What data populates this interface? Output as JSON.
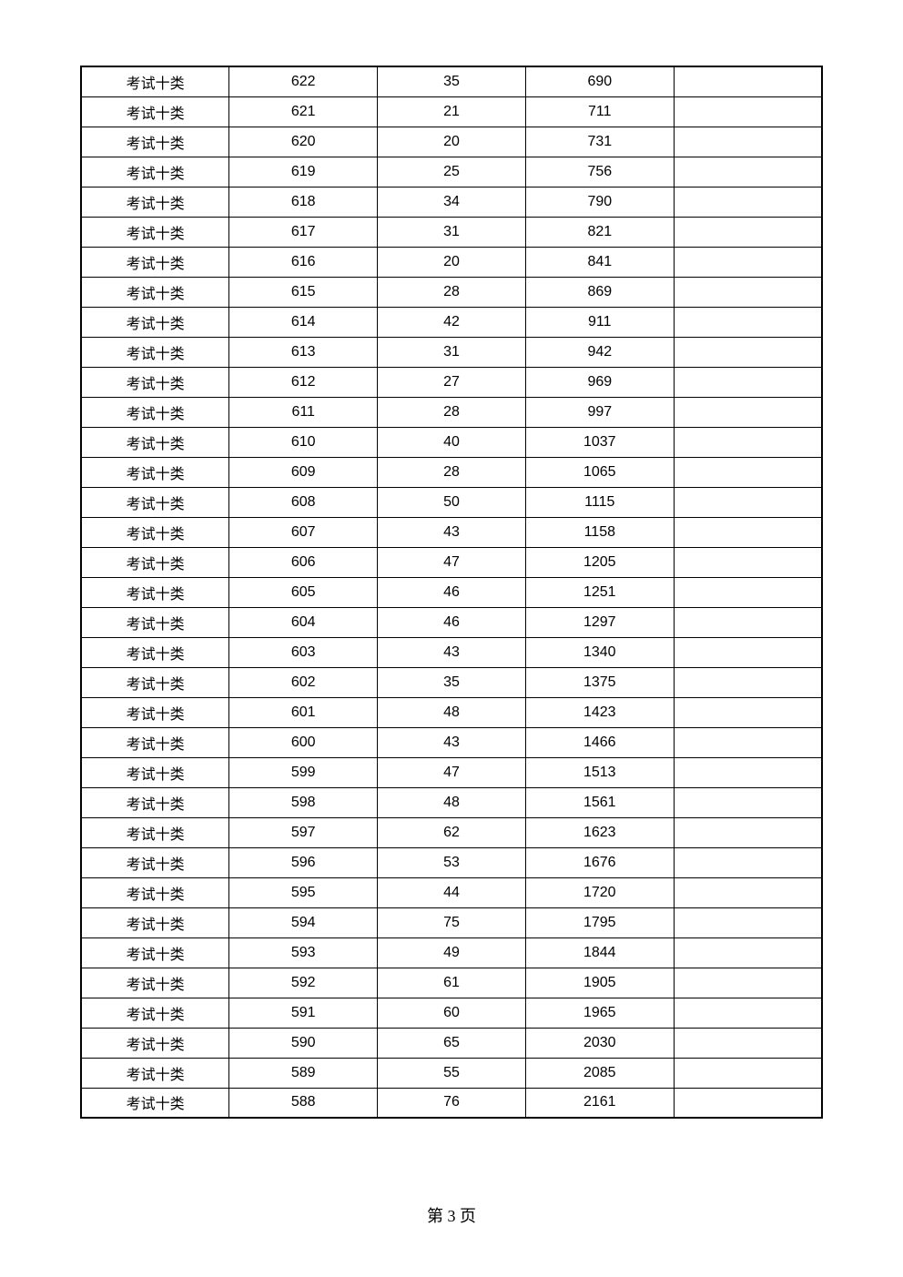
{
  "table": {
    "rows": [
      {
        "category": "考试十类",
        "score": "622",
        "count": "35",
        "cumulative": "690",
        "note": ""
      },
      {
        "category": "考试十类",
        "score": "621",
        "count": "21",
        "cumulative": "711",
        "note": ""
      },
      {
        "category": "考试十类",
        "score": "620",
        "count": "20",
        "cumulative": "731",
        "note": ""
      },
      {
        "category": "考试十类",
        "score": "619",
        "count": "25",
        "cumulative": "756",
        "note": ""
      },
      {
        "category": "考试十类",
        "score": "618",
        "count": "34",
        "cumulative": "790",
        "note": ""
      },
      {
        "category": "考试十类",
        "score": "617",
        "count": "31",
        "cumulative": "821",
        "note": ""
      },
      {
        "category": "考试十类",
        "score": "616",
        "count": "20",
        "cumulative": "841",
        "note": ""
      },
      {
        "category": "考试十类",
        "score": "615",
        "count": "28",
        "cumulative": "869",
        "note": ""
      },
      {
        "category": "考试十类",
        "score": "614",
        "count": "42",
        "cumulative": "911",
        "note": ""
      },
      {
        "category": "考试十类",
        "score": "613",
        "count": "31",
        "cumulative": "942",
        "note": ""
      },
      {
        "category": "考试十类",
        "score": "612",
        "count": "27",
        "cumulative": "969",
        "note": ""
      },
      {
        "category": "考试十类",
        "score": "611",
        "count": "28",
        "cumulative": "997",
        "note": ""
      },
      {
        "category": "考试十类",
        "score": "610",
        "count": "40",
        "cumulative": "1037",
        "note": ""
      },
      {
        "category": "考试十类",
        "score": "609",
        "count": "28",
        "cumulative": "1065",
        "note": ""
      },
      {
        "category": "考试十类",
        "score": "608",
        "count": "50",
        "cumulative": "1115",
        "note": ""
      },
      {
        "category": "考试十类",
        "score": "607",
        "count": "43",
        "cumulative": "1158",
        "note": ""
      },
      {
        "category": "考试十类",
        "score": "606",
        "count": "47",
        "cumulative": "1205",
        "note": ""
      },
      {
        "category": "考试十类",
        "score": "605",
        "count": "46",
        "cumulative": "1251",
        "note": ""
      },
      {
        "category": "考试十类",
        "score": "604",
        "count": "46",
        "cumulative": "1297",
        "note": ""
      },
      {
        "category": "考试十类",
        "score": "603",
        "count": "43",
        "cumulative": "1340",
        "note": ""
      },
      {
        "category": "考试十类",
        "score": "602",
        "count": "35",
        "cumulative": "1375",
        "note": ""
      },
      {
        "category": "考试十类",
        "score": "601",
        "count": "48",
        "cumulative": "1423",
        "note": ""
      },
      {
        "category": "考试十类",
        "score": "600",
        "count": "43",
        "cumulative": "1466",
        "note": ""
      },
      {
        "category": "考试十类",
        "score": "599",
        "count": "47",
        "cumulative": "1513",
        "note": ""
      },
      {
        "category": "考试十类",
        "score": "598",
        "count": "48",
        "cumulative": "1561",
        "note": ""
      },
      {
        "category": "考试十类",
        "score": "597",
        "count": "62",
        "cumulative": "1623",
        "note": ""
      },
      {
        "category": "考试十类",
        "score": "596",
        "count": "53",
        "cumulative": "1676",
        "note": ""
      },
      {
        "category": "考试十类",
        "score": "595",
        "count": "44",
        "cumulative": "1720",
        "note": ""
      },
      {
        "category": "考试十类",
        "score": "594",
        "count": "75",
        "cumulative": "1795",
        "note": ""
      },
      {
        "category": "考试十类",
        "score": "593",
        "count": "49",
        "cumulative": "1844",
        "note": ""
      },
      {
        "category": "考试十类",
        "score": "592",
        "count": "61",
        "cumulative": "1905",
        "note": ""
      },
      {
        "category": "考试十类",
        "score": "591",
        "count": "60",
        "cumulative": "1965",
        "note": ""
      },
      {
        "category": "考试十类",
        "score": "590",
        "count": "65",
        "cumulative": "2030",
        "note": ""
      },
      {
        "category": "考试十类",
        "score": "589",
        "count": "55",
        "cumulative": "2085",
        "note": ""
      },
      {
        "category": "考试十类",
        "score": "588",
        "count": "76",
        "cumulative": "2161",
        "note": ""
      }
    ]
  },
  "footer": {
    "page_label": "第 3 页"
  }
}
